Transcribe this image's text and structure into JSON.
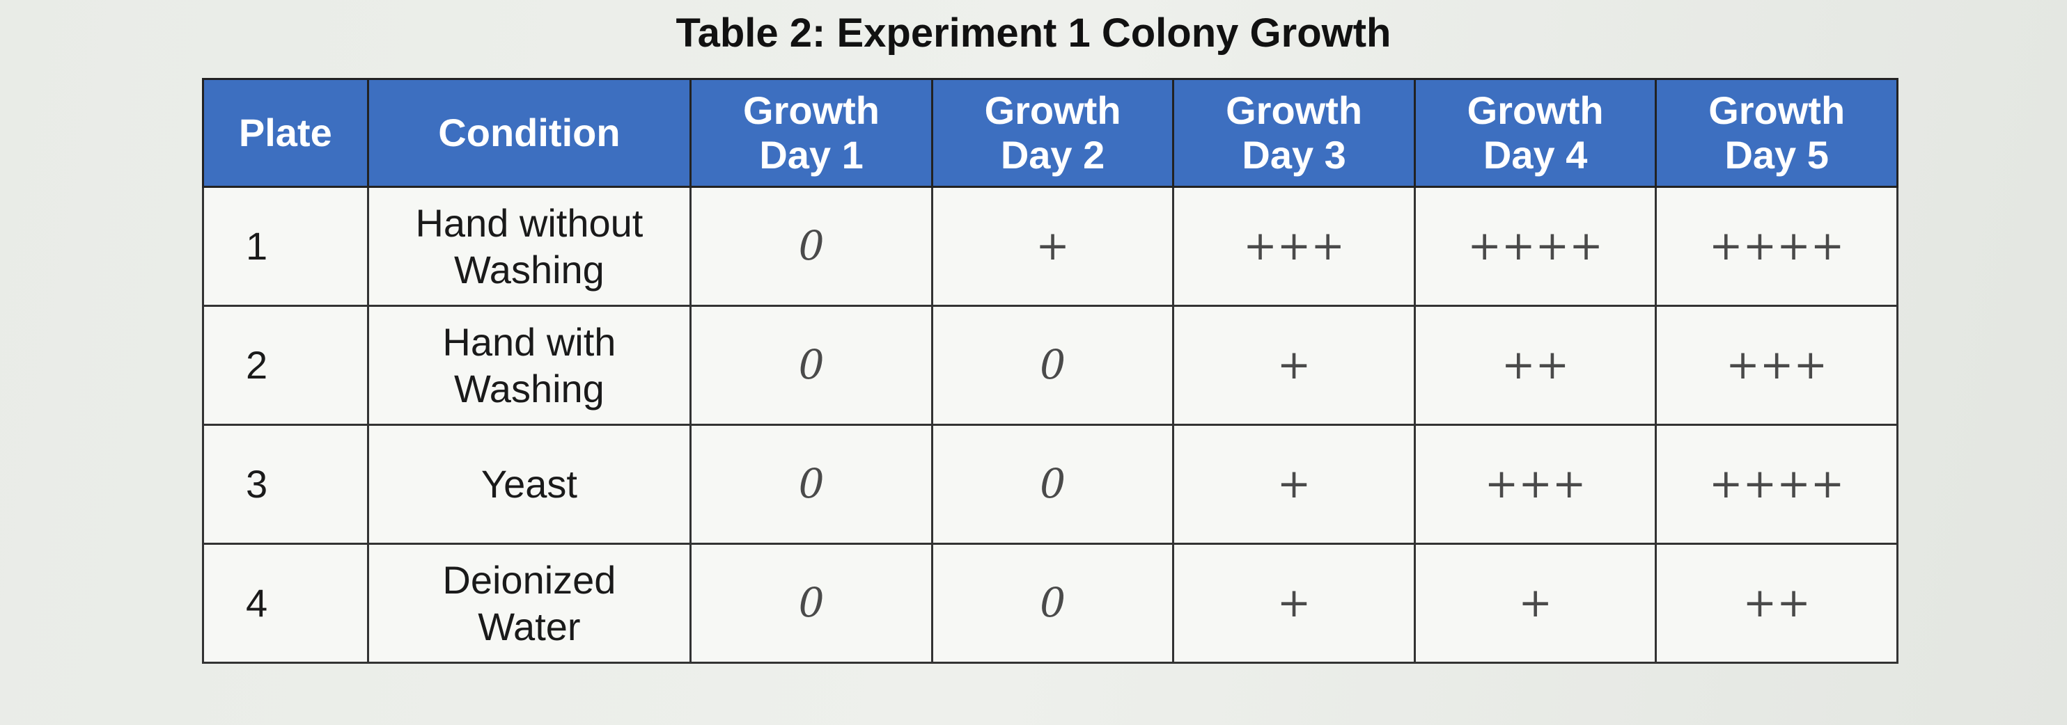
{
  "title": "Table 2: Experiment 1 Colony Growth",
  "table": {
    "header": [
      "Plate",
      "Condition",
      "Growth Day 1",
      "Growth Day 2",
      "Growth Day 3",
      "Growth Day 4",
      "Growth Day 5"
    ],
    "rows": [
      [
        "1",
        "Hand without Washing",
        "0",
        "+",
        "+++",
        "++++",
        "++++"
      ],
      [
        "2",
        "Hand with Washing",
        "0",
        "0",
        "+",
        "++",
        "+++"
      ],
      [
        "3",
        "Yeast",
        "0",
        "0",
        "+",
        "+++",
        "++++"
      ],
      [
        "4",
        "Deionized Water",
        "0",
        "0",
        "+",
        "+",
        "++"
      ]
    ]
  }
}
